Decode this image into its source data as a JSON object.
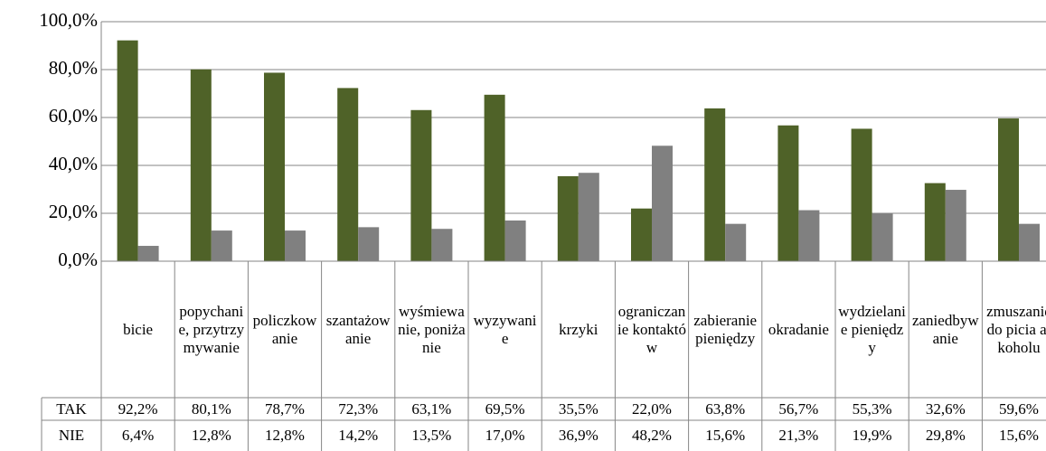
{
  "chart_data": {
    "type": "bar",
    "categories": [
      "bicie",
      "popychanie, przytrzymywanie",
      "policzkowanie",
      "szantażowanie",
      "wyśmiewanie, poniżanie",
      "wyzywanie",
      "krzyki",
      "ograniczanie kontaktów",
      "zabieranie pieniędzy",
      "okradanie",
      "wydzielanie pieniędzy",
      "zaniedbywanie",
      "zmuszanie do picia alkoholu"
    ],
    "series": [
      {
        "name": "TAK",
        "color": "#4f6228",
        "values": [
          92.2,
          80.1,
          78.7,
          72.3,
          63.1,
          69.5,
          35.5,
          22.0,
          63.8,
          56.7,
          55.3,
          32.6,
          59.6
        ],
        "value_labels": [
          "92,2%",
          "80,1%",
          "78,7%",
          "72,3%",
          "63,1%",
          "69,5%",
          "35,5%",
          "22,0%",
          "63,8%",
          "56,7%",
          "55,3%",
          "32,6%",
          "59,6%"
        ]
      },
      {
        "name": "NIE",
        "color": "#808080",
        "values": [
          6.4,
          12.8,
          12.8,
          14.2,
          13.5,
          17.0,
          36.9,
          48.2,
          15.6,
          21.3,
          19.9,
          29.8,
          15.6
        ],
        "value_labels": [
          "6,4%",
          "12,8%",
          "12,8%",
          "14,2%",
          "13,5%",
          "17,0%",
          "36,9%",
          "48,2%",
          "15,6%",
          "21,3%",
          "19,9%",
          "29,8%",
          "15,6%"
        ]
      }
    ],
    "ylim": [
      0,
      100
    ],
    "yticks": [
      {
        "value": 0,
        "label": "0,0%"
      },
      {
        "value": 20,
        "label": "20,0%"
      },
      {
        "value": 40,
        "label": "40,0%"
      },
      {
        "value": 60,
        "label": "60,0%"
      },
      {
        "value": 80,
        "label": "80,0%"
      },
      {
        "value": 100,
        "label": "100,0%"
      }
    ],
    "grid": true
  }
}
